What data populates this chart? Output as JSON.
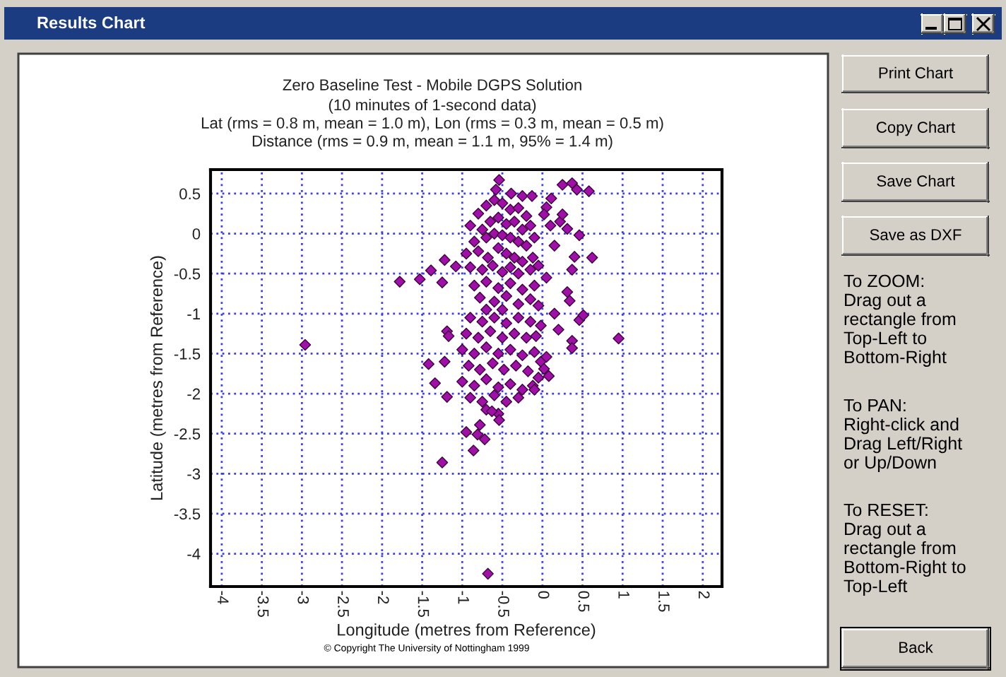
{
  "chart_data": {
    "type": "scatter",
    "title": "Zero Baseline Test - Mobile DGPS Solution",
    "subtitle": "(10 minutes of 1-second data)\nLat (rms = 0.8 m, mean = 1.0 m), Lon (rms = 0.3 m, mean = 0.5 m)\nDistance (rms = 0.9 m, mean = 1.1 m, 95% = 1.4 m)",
    "xlabel": "Longitude (metres from Reference)",
    "ylabel": "Latitude (metres from Reference)",
    "annotations": [
      "Results Chart",
      "Print Chart",
      "Copy Chart",
      "Save Chart",
      "Save as DXF",
      "To ZOOM:\nDrag out a\nrectangle from\nTop-Left to\nBottom-Right",
      "To PAN:\nRight-click and\nDrag Left/Right\nor Up/Down",
      "To RESET:\nDrag out a\nrectangle from\nBottom-Right to\nTop-Left",
      "Back",
      "© Copyright The University of Nottingham 1999"
    ],
    "series": [
      {
        "color": "#a010a8",
        "x": [
          -0.9,
          -0.8,
          -0.7,
          -0.6,
          -0.5,
          -0.4,
          -0.3,
          -0.2,
          -0.75,
          -0.65,
          -0.55,
          -0.45,
          -0.35,
          -0.25,
          -0.15,
          -0.85,
          -0.7,
          -0.6,
          -0.5,
          -0.4,
          -0.3,
          -0.2,
          -0.1,
          -0.95,
          -0.8,
          -0.68,
          -0.55,
          -0.45,
          -0.35,
          -0.25,
          -0.12,
          -0.9,
          -0.75,
          -0.62,
          -0.5,
          -0.4,
          -0.3,
          -0.15,
          -0.05,
          -0.85,
          -0.7,
          -0.55,
          -0.4,
          -0.25,
          -0.1,
          -0.78,
          -0.6,
          -0.45,
          -0.3,
          -0.15,
          -0.05,
          -0.7,
          -0.5,
          -0.9,
          -0.75,
          -0.6,
          -0.45,
          -0.3,
          -0.15,
          -0.02,
          -0.95,
          -0.8,
          -0.65,
          -0.5,
          -0.35,
          -0.2,
          -0.08,
          -1.0,
          -0.85,
          -0.7,
          -0.55,
          -0.4,
          -0.25,
          -0.1,
          -0.02,
          -0.92,
          -0.78,
          -0.62,
          -0.48,
          -0.33,
          -0.18,
          -0.05,
          -1.0,
          -0.85,
          -0.7,
          -0.55,
          -0.4,
          -0.25,
          -0.12,
          -0.9,
          -0.75,
          -0.6,
          -0.45,
          -0.3,
          -0.7,
          -0.55,
          -0.54,
          -0.58,
          0.25,
          0.37,
          0.43,
          0.58,
          0.11,
          0.05,
          0.02,
          0.22,
          0.25,
          0.31,
          -0.39,
          -0.25,
          -0.13,
          0.46,
          0.62,
          0.4,
          0.37,
          -1.78,
          -1.53,
          -1.39,
          -1.22,
          -1.08,
          -1.25,
          0.31,
          0.34,
          0.46,
          0.51,
          0.37,
          0.37,
          0.95,
          -1.19,
          -1.17,
          0.05,
          0.08,
          0.02,
          -1.42,
          -1.22,
          -1.34,
          -1.19,
          -0.1,
          -0.54,
          -0.63,
          -0.78,
          -0.81,
          -0.95,
          -0.86,
          -0.72,
          -1.25,
          -0.68,
          -2.96,
          0.1,
          0.15,
          0.05,
          0.2,
          0.15
        ],
        "values": [
          0.1,
          0.25,
          0.35,
          0.42,
          0.38,
          0.3,
          0.32,
          0.22,
          0.05,
          0.15,
          0.2,
          0.12,
          0.15,
          0.05,
          0.1,
          -0.1,
          -0.05,
          0.0,
          -0.02,
          -0.05,
          -0.1,
          -0.15,
          -0.05,
          -0.25,
          -0.22,
          -0.3,
          -0.18,
          -0.25,
          -0.3,
          -0.35,
          -0.3,
          -0.42,
          -0.45,
          -0.4,
          -0.48,
          -0.42,
          -0.5,
          -0.45,
          -0.4,
          -0.65,
          -0.6,
          -0.68,
          -0.62,
          -0.7,
          -0.65,
          -0.8,
          -0.85,
          -0.78,
          -0.88,
          -0.82,
          -0.9,
          -0.95,
          -0.95,
          -1.05,
          -1.1,
          -1.05,
          -1.12,
          -1.05,
          -1.1,
          -1.15,
          -1.25,
          -1.3,
          -1.22,
          -1.3,
          -1.25,
          -1.3,
          -1.28,
          -1.45,
          -1.5,
          -1.42,
          -1.5,
          -1.45,
          -1.52,
          -1.48,
          -1.6,
          -1.65,
          -1.7,
          -1.62,
          -1.7,
          -1.65,
          -1.72,
          -1.8,
          -1.85,
          -1.9,
          -1.82,
          -1.92,
          -1.88,
          -1.95,
          -1.9,
          -2.05,
          -2.1,
          -2.02,
          -2.1,
          -2.05,
          -2.2,
          -2.25,
          0.67,
          0.55,
          0.61,
          0.63,
          0.55,
          0.53,
          0.44,
          0.33,
          0.24,
          0.15,
          0.24,
          0.06,
          0.5,
          0.47,
          0.47,
          -0.02,
          -0.3,
          -0.29,
          -0.45,
          -0.6,
          -0.57,
          -0.46,
          -0.33,
          -0.41,
          -0.61,
          -0.73,
          -0.84,
          -1.08,
          -1.02,
          -1.34,
          -1.43,
          -1.31,
          -1.22,
          -1.28,
          -1.54,
          -1.78,
          -1.69,
          -1.63,
          -1.6,
          -1.87,
          -2.04,
          -1.95,
          -2.33,
          -2.22,
          -2.39,
          -2.51,
          -2.48,
          -2.71,
          -2.57,
          -2.86,
          -4.25,
          -1.39,
          0.1,
          -0.15,
          -0.55,
          -1.2,
          -1.0
        ]
      }
    ],
    "xlim": [
      -4.14,
      2.24
    ],
    "ylim": [
      -4.41,
      0.8
    ],
    "xticks": [
      -4,
      -3.5,
      -3,
      -2.5,
      -2,
      -1.5,
      -1,
      -0.5,
      0,
      0.5,
      1,
      1.5,
      2
    ],
    "yticks": [
      0.5,
      0,
      -0.5,
      -1,
      -1.5,
      -2,
      -2.5,
      -3,
      -3.5,
      -4
    ],
    "grid": true,
    "marker": "diamond"
  }
}
